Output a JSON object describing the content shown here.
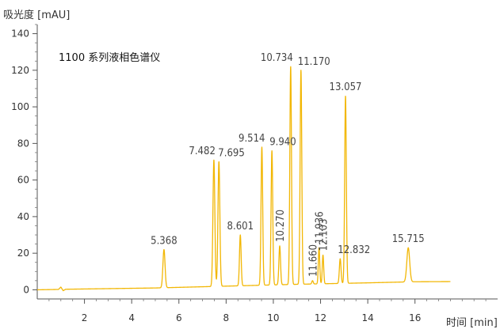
{
  "chart_data": {
    "type": "line",
    "title": "1100 系列液相色谱仪",
    "xlabel": "时间 [min]",
    "ylabel": "吸光度 [mAU]",
    "xlim": [
      0,
      19.5
    ],
    "ylim": [
      -5,
      145
    ],
    "x_ticks": [
      2,
      4,
      6,
      8,
      10,
      12,
      14,
      16
    ],
    "y_ticks": [
      0,
      20,
      40,
      60,
      80,
      100,
      120,
      140
    ],
    "grid": false,
    "line_color": "#f2b705",
    "baseline": [
      [
        0,
        0
      ],
      [
        0.9,
        0.2
      ],
      [
        1.0,
        1.5
      ],
      [
        1.1,
        -0.5
      ],
      [
        1.2,
        0.3
      ],
      [
        5.0,
        1.0
      ],
      [
        7.4,
        1.8
      ],
      [
        8.0,
        2.0
      ],
      [
        9.5,
        2.5
      ],
      [
        11.0,
        3.0
      ],
      [
        12.5,
        3.4
      ],
      [
        14.0,
        3.8
      ],
      [
        15.3,
        4.2
      ],
      [
        16.0,
        4.4
      ],
      [
        17.5,
        4.5
      ]
    ],
    "peaks": [
      {
        "rt": 5.368,
        "label": "5.368",
        "height": 22,
        "width": 0.045
      },
      {
        "rt": 7.482,
        "label": "7.482",
        "height": 71,
        "width": 0.04
      },
      {
        "rt": 7.695,
        "label": "7.695",
        "height": 70,
        "width": 0.04
      },
      {
        "rt": 8.601,
        "label": "8.601",
        "height": 30,
        "width": 0.035
      },
      {
        "rt": 9.514,
        "label": "9.514",
        "height": 78,
        "width": 0.035
      },
      {
        "rt": 9.94,
        "label": "9.940",
        "height": 76,
        "width": 0.035
      },
      {
        "rt": 10.27,
        "label": "10.270",
        "height": 24,
        "width": 0.035
      },
      {
        "rt": 10.734,
        "label": "10.734",
        "height": 122,
        "width": 0.035
      },
      {
        "rt": 11.17,
        "label": "11.170",
        "height": 120,
        "width": 0.035
      },
      {
        "rt": 11.66,
        "label": "11.660",
        "height": 5,
        "width": 0.03
      },
      {
        "rt": 11.936,
        "label": "11.936",
        "height": 23,
        "width": 0.03
      },
      {
        "rt": 12.103,
        "label": "12.103",
        "height": 19,
        "width": 0.03
      },
      {
        "rt": 12.832,
        "label": "12.832",
        "height": 17,
        "width": 0.035
      },
      {
        "rt": 13.057,
        "label": "13.057",
        "height": 106,
        "width": 0.035
      },
      {
        "rt": 15.715,
        "label": "15.715",
        "height": 23,
        "width": 0.06
      }
    ]
  }
}
